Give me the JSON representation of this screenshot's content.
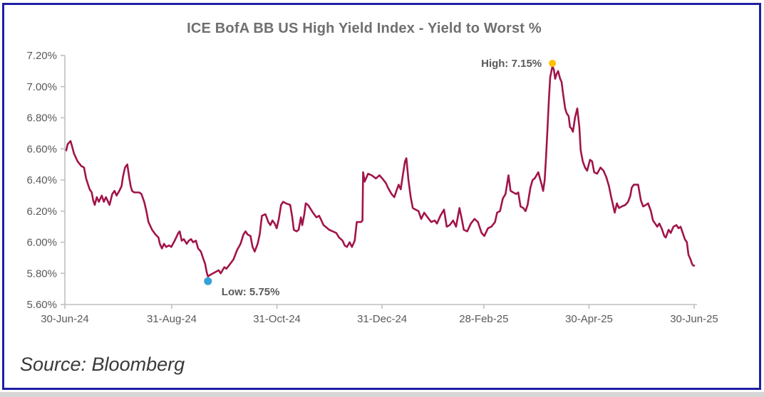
{
  "frame": {
    "border_color": "#1f1fa3",
    "outer_bottom_strip_color": "#d6d6d6",
    "background": "#ffffff"
  },
  "source_note": "Source: Bloomberg",
  "chart_data": {
    "type": "line",
    "title": "ICE BofA BB US High Yield Index - Yield to Worst %",
    "xlabel": "",
    "ylabel": "",
    "grid": false,
    "legend": "none",
    "x_unit": "days since 30-Jun-24",
    "x_range_days": [
      0,
      365
    ],
    "x_tick_days": [
      0,
      62,
      123,
      184,
      243,
      304,
      365
    ],
    "x_tick_labels": [
      "30-Jun-24",
      "31-Aug-24",
      "31-Oct-24",
      "31-Dec-24",
      "28-Feb-25",
      "30-Apr-25",
      "30-Jun-25"
    ],
    "ylim": [
      5.6,
      7.2
    ],
    "y_tick_labels": [
      "5.60%",
      "5.80%",
      "6.00%",
      "6.20%",
      "6.40%",
      "6.60%",
      "6.80%",
      "7.00%",
      "7.20%"
    ],
    "y_tick_values": [
      5.6,
      5.8,
      6.0,
      6.2,
      6.4,
      6.6,
      6.8,
      7.0,
      7.2
    ],
    "line_color": "#a1144a",
    "annotations": {
      "high": {
        "label": "High: 7.15%",
        "day": 282.8,
        "value": 7.15,
        "marker_color": "#ffc000"
      },
      "low": {
        "label": "Low: 5.75%",
        "day": 83.0,
        "value": 5.75,
        "marker_color": "#35a1d6"
      }
    },
    "points": [
      [
        0.8,
        6.59
      ],
      [
        1.6,
        6.63
      ],
      [
        3.3,
        6.65
      ],
      [
        4.1,
        6.62
      ],
      [
        5.3,
        6.57
      ],
      [
        7.4,
        6.52
      ],
      [
        9.5,
        6.49
      ],
      [
        11.1,
        6.48
      ],
      [
        12.3,
        6.41
      ],
      [
        13.2,
        6.38
      ],
      [
        14.4,
        6.34
      ],
      [
        15.6,
        6.32
      ],
      [
        16.4,
        6.27
      ],
      [
        17.3,
        6.24
      ],
      [
        18.5,
        6.29
      ],
      [
        19.7,
        6.26
      ],
      [
        21.4,
        6.3
      ],
      [
        22.6,
        6.26
      ],
      [
        23.8,
        6.29
      ],
      [
        25.5,
        6.25
      ],
      [
        25.9,
        6.24
      ],
      [
        27.5,
        6.31
      ],
      [
        28.8,
        6.33
      ],
      [
        30.0,
        6.3
      ],
      [
        31.6,
        6.33
      ],
      [
        32.9,
        6.36
      ],
      [
        33.7,
        6.42
      ],
      [
        34.9,
        6.48
      ],
      [
        36.2,
        6.5
      ],
      [
        37.4,
        6.41
      ],
      [
        38.2,
        6.36
      ],
      [
        39.0,
        6.33
      ],
      [
        40.3,
        6.32
      ],
      [
        43.2,
        6.32
      ],
      [
        44.4,
        6.31
      ],
      [
        46.0,
        6.26
      ],
      [
        47.3,
        6.2
      ],
      [
        48.5,
        6.13
      ],
      [
        50.6,
        6.08
      ],
      [
        52.6,
        6.05
      ],
      [
        54.3,
        6.03
      ],
      [
        55.1,
        5.99
      ],
      [
        56.3,
        5.96
      ],
      [
        57.5,
        5.99
      ],
      [
        58.8,
        5.97
      ],
      [
        60.4,
        5.98
      ],
      [
        61.7,
        5.97
      ],
      [
        63.7,
        6.01
      ],
      [
        65.8,
        6.06
      ],
      [
        66.6,
        6.07
      ],
      [
        67.8,
        6.01
      ],
      [
        69.0,
        6.02
      ],
      [
        70.7,
        5.99
      ],
      [
        71.9,
        6.01
      ],
      [
        73.2,
        6.02
      ],
      [
        74.4,
        6.0
      ],
      [
        76.0,
        6.01
      ],
      [
        77.3,
        5.96
      ],
      [
        78.9,
        5.94
      ],
      [
        80.1,
        5.9
      ],
      [
        81.4,
        5.86
      ],
      [
        82.2,
        5.81
      ],
      [
        83.0,
        5.78
      ],
      [
        84.3,
        5.79
      ],
      [
        85.9,
        5.8
      ],
      [
        87.5,
        5.81
      ],
      [
        89.2,
        5.82
      ],
      [
        90.4,
        5.8
      ],
      [
        92.5,
        5.84
      ],
      [
        93.7,
        5.83
      ],
      [
        95.8,
        5.86
      ],
      [
        97.8,
        5.89
      ],
      [
        99.9,
        5.95
      ],
      [
        101.9,
        5.99
      ],
      [
        103.6,
        6.05
      ],
      [
        104.8,
        6.07
      ],
      [
        106.0,
        6.05
      ],
      [
        107.7,
        6.04
      ],
      [
        108.9,
        5.97
      ],
      [
        110.1,
        5.94
      ],
      [
        111.8,
        5.99
      ],
      [
        113.0,
        6.05
      ],
      [
        114.3,
        6.17
      ],
      [
        116.3,
        6.18
      ],
      [
        118.0,
        6.13
      ],
      [
        119.2,
        6.11
      ],
      [
        120.4,
        6.14
      ],
      [
        121.7,
        6.12
      ],
      [
        122.9,
        6.09
      ],
      [
        124.1,
        6.15
      ],
      [
        125.4,
        6.24
      ],
      [
        126.6,
        6.26
      ],
      [
        128.2,
        6.25
      ],
      [
        130.7,
        6.24
      ],
      [
        131.9,
        6.16
      ],
      [
        132.8,
        6.08
      ],
      [
        134.4,
        6.07
      ],
      [
        135.6,
        6.08
      ],
      [
        136.9,
        6.16
      ],
      [
        137.7,
        6.11
      ],
      [
        138.9,
        6.18
      ],
      [
        139.7,
        6.25
      ],
      [
        141.0,
        6.24
      ],
      [
        142.2,
        6.22
      ],
      [
        143.9,
        6.19
      ],
      [
        145.9,
        6.16
      ],
      [
        147.5,
        6.17
      ],
      [
        148.8,
        6.14
      ],
      [
        150.0,
        6.11
      ],
      [
        151.2,
        6.1
      ],
      [
        153.3,
        6.08
      ],
      [
        155.4,
        6.07
      ],
      [
        157.4,
        6.06
      ],
      [
        159.1,
        6.03
      ],
      [
        161.1,
        6.01
      ],
      [
        162.3,
        5.98
      ],
      [
        163.6,
        5.97
      ],
      [
        165.2,
        6.0
      ],
      [
        166.5,
        5.97
      ],
      [
        168.1,
        6.01
      ],
      [
        169.3,
        6.13
      ],
      [
        171.8,
        6.13
      ],
      [
        172.6,
        6.14
      ],
      [
        173.0,
        6.45
      ],
      [
        173.9,
        6.39
      ],
      [
        175.9,
        6.44
      ],
      [
        178.0,
        6.43
      ],
      [
        180.4,
        6.41
      ],
      [
        182.5,
        6.43
      ],
      [
        184.1,
        6.41
      ],
      [
        186.2,
        6.38
      ],
      [
        187.4,
        6.35
      ],
      [
        189.5,
        6.31
      ],
      [
        191.1,
        6.29
      ],
      [
        192.3,
        6.33
      ],
      [
        193.6,
        6.37
      ],
      [
        194.8,
        6.34
      ],
      [
        196.0,
        6.43
      ],
      [
        197.3,
        6.52
      ],
      [
        198.1,
        6.54
      ],
      [
        199.3,
        6.4
      ],
      [
        200.6,
        6.29
      ],
      [
        201.8,
        6.22
      ],
      [
        203.4,
        6.21
      ],
      [
        205.1,
        6.2
      ],
      [
        206.7,
        6.15
      ],
      [
        208.4,
        6.19
      ],
      [
        210.4,
        6.16
      ],
      [
        212.5,
        6.13
      ],
      [
        214.5,
        6.14
      ],
      [
        215.8,
        6.12
      ],
      [
        217.8,
        6.17
      ],
      [
        219.9,
        6.21
      ],
      [
        221.5,
        6.1
      ],
      [
        223.2,
        6.11
      ],
      [
        225.2,
        6.14
      ],
      [
        226.9,
        6.1
      ],
      [
        228.9,
        6.22
      ],
      [
        230.2,
        6.15
      ],
      [
        231.4,
        6.08
      ],
      [
        233.4,
        6.07
      ],
      [
        235.5,
        6.12
      ],
      [
        237.6,
        6.15
      ],
      [
        239.6,
        6.13
      ],
      [
        241.7,
        6.06
      ],
      [
        243.3,
        6.04
      ],
      [
        245.4,
        6.09
      ],
      [
        247.4,
        6.1
      ],
      [
        249.5,
        6.13
      ],
      [
        250.7,
        6.19
      ],
      [
        252.4,
        6.2
      ],
      [
        254.0,
        6.28
      ],
      [
        255.6,
        6.31
      ],
      [
        257.3,
        6.43
      ],
      [
        258.5,
        6.33
      ],
      [
        260.1,
        6.32
      ],
      [
        261.8,
        6.31
      ],
      [
        263.0,
        6.32
      ],
      [
        264.3,
        6.23
      ],
      [
        265.9,
        6.22
      ],
      [
        267.2,
        6.2
      ],
      [
        268.4,
        6.24
      ],
      [
        270.0,
        6.35
      ],
      [
        271.3,
        6.4
      ],
      [
        272.5,
        6.41
      ],
      [
        274.6,
        6.45
      ],
      [
        275.8,
        6.4
      ],
      [
        276.6,
        6.37
      ],
      [
        277.4,
        6.33
      ],
      [
        278.3,
        6.4
      ],
      [
        279.1,
        6.55
      ],
      [
        279.9,
        6.72
      ],
      [
        280.7,
        6.91
      ],
      [
        281.5,
        7.06
      ],
      [
        282.8,
        7.13
      ],
      [
        283.6,
        7.11
      ],
      [
        284.4,
        7.05
      ],
      [
        285.2,
        7.08
      ],
      [
        286.1,
        7.1
      ],
      [
        287.3,
        7.05
      ],
      [
        288.1,
        7.03
      ],
      [
        288.9,
        6.96
      ],
      [
        290.2,
        6.86
      ],
      [
        291.0,
        6.83
      ],
      [
        292.2,
        6.81
      ],
      [
        293.0,
        6.74
      ],
      [
        293.9,
        6.73
      ],
      [
        294.7,
        6.71
      ],
      [
        295.9,
        6.8
      ],
      [
        297.2,
        6.86
      ],
      [
        298.4,
        6.74
      ],
      [
        299.2,
        6.59
      ],
      [
        300.4,
        6.52
      ],
      [
        301.7,
        6.48
      ],
      [
        302.9,
        6.46
      ],
      [
        304.6,
        6.53
      ],
      [
        305.8,
        6.52
      ],
      [
        307.0,
        6.45
      ],
      [
        308.7,
        6.44
      ],
      [
        310.7,
        6.48
      ],
      [
        312.4,
        6.46
      ],
      [
        314.0,
        6.42
      ],
      [
        315.6,
        6.36
      ],
      [
        316.9,
        6.29
      ],
      [
        317.7,
        6.25
      ],
      [
        318.9,
        6.19
      ],
      [
        320.2,
        6.25
      ],
      [
        321.4,
        6.22
      ],
      [
        323.0,
        6.23
      ],
      [
        325.1,
        6.24
      ],
      [
        326.7,
        6.26
      ],
      [
        328.0,
        6.3
      ],
      [
        328.8,
        6.35
      ],
      [
        330.0,
        6.37
      ],
      [
        332.5,
        6.37
      ],
      [
        334.1,
        6.27
      ],
      [
        335.4,
        6.23
      ],
      [
        337.0,
        6.24
      ],
      [
        338.3,
        6.25
      ],
      [
        339.9,
        6.2
      ],
      [
        341.1,
        6.14
      ],
      [
        342.4,
        6.12
      ],
      [
        343.6,
        6.1
      ],
      [
        344.8,
        6.12
      ],
      [
        346.1,
        6.09
      ],
      [
        347.7,
        6.04
      ],
      [
        348.5,
        6.03
      ],
      [
        350.2,
        6.08
      ],
      [
        351.4,
        6.06
      ],
      [
        353.0,
        6.1
      ],
      [
        354.7,
        6.11
      ],
      [
        355.9,
        6.09
      ],
      [
        357.1,
        6.1
      ],
      [
        358.4,
        6.06
      ],
      [
        359.6,
        6.02
      ],
      [
        360.8,
        6.0
      ],
      [
        361.7,
        5.92
      ],
      [
        362.9,
        5.89
      ],
      [
        363.8,
        5.86
      ],
      [
        364.5,
        5.85
      ],
      [
        365.0,
        5.85
      ]
    ]
  }
}
